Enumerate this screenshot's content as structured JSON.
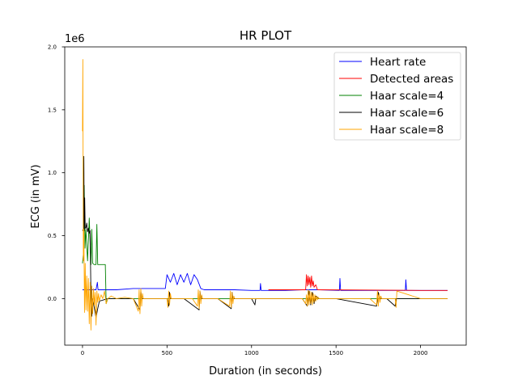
{
  "chart_data": {
    "type": "line",
    "title": "HR PLOT",
    "xlabel": "Duration (in seconds)",
    "ylabel": "ECG (in mV)",
    "y_offset_label": "1e6",
    "xlim": [
      -105,
      2270
    ],
    "ylim": [
      -370000,
      2000000
    ],
    "x_ticks": [
      0,
      500,
      1000,
      1500,
      2000
    ],
    "x_tick_labels": [
      "0",
      "500",
      "1000",
      "1500",
      "2000"
    ],
    "y_ticks": [
      0,
      500000,
      1000000,
      1500000,
      2000000
    ],
    "y_tick_labels": [
      "0.0",
      "0.5",
      "1.0",
      "1.5",
      "2.0"
    ],
    "grid": false,
    "legend_position": "top-right",
    "series": [
      {
        "name": "Heart rate",
        "color": "#0000ff",
        "x": [
          0,
          40,
          80,
          88,
          92,
          100,
          200,
          300,
          400,
          490,
          500,
          520,
          540,
          560,
          580,
          600,
          620,
          640,
          660,
          680,
          700,
          720,
          800,
          900,
          1000,
          1050,
          1053,
          1057,
          1100,
          1200,
          1300,
          1340,
          1400,
          1520,
          1523,
          1527,
          1600,
          1700,
          1800,
          1900,
          1910,
          1913,
          1917,
          2000,
          2160
        ],
        "y": [
          70000,
          70000,
          70000,
          130000,
          70000,
          70000,
          70000,
          80000,
          80000,
          80000,
          190000,
          130000,
          200000,
          110000,
          190000,
          130000,
          200000,
          110000,
          190000,
          150000,
          80000,
          70000,
          70000,
          70000,
          65000,
          65000,
          120000,
          65000,
          65000,
          65000,
          70000,
          70000,
          70000,
          65000,
          160000,
          65000,
          65000,
          65000,
          65000,
          65000,
          65000,
          150000,
          65000,
          65000,
          65000
        ]
      },
      {
        "name": "Detected areas",
        "color": "#ff0000",
        "x": [
          1100,
          1200,
          1300,
          1320,
          1325,
          1330,
          1335,
          1340,
          1345,
          1350,
          1355,
          1360,
          1365,
          1370,
          1380,
          1390,
          1400,
          2000,
          2100,
          2160
        ],
        "y": [
          70000,
          70000,
          70000,
          70000,
          190000,
          100000,
          180000,
          110000,
          170000,
          90000,
          180000,
          100000,
          140000,
          90000,
          110000,
          70000,
          70000,
          65000,
          65000,
          65000
        ]
      },
      {
        "name": "Haar scale=4",
        "color": "#008000",
        "x": [
          0,
          5,
          10,
          15,
          20,
          30,
          40,
          50,
          55,
          60,
          70,
          80,
          85,
          90,
          95,
          100,
          120,
          135,
          140,
          150,
          200,
          300,
          400,
          2160
        ],
        "y": [
          280000,
          350000,
          900000,
          400000,
          550000,
          300000,
          640000,
          270000,
          550000,
          280000,
          270000,
          270000,
          590000,
          270000,
          270000,
          270000,
          270000,
          270000,
          -40000,
          0,
          0,
          0,
          0,
          0
        ]
      },
      {
        "name": "Haar scale=6",
        "color": "#000000",
        "x": [
          0,
          5,
          8,
          10,
          13,
          16,
          20,
          25,
          30,
          35,
          40,
          45,
          50,
          55,
          60,
          80,
          90,
          100,
          150,
          200,
          300,
          340,
          345,
          350,
          400,
          500,
          510,
          515,
          520,
          600,
          690,
          695,
          700,
          800,
          880,
          885,
          890,
          1000,
          1020,
          1025,
          1100,
          1300,
          1330,
          1340,
          1350,
          1360,
          1370,
          1380,
          1400,
          1500,
          1740,
          1750,
          1760,
          1800,
          1850,
          1855,
          2000,
          2160
        ],
        "y": [
          540000,
          550000,
          1130000,
          540000,
          800000,
          560000,
          560000,
          600000,
          530000,
          560000,
          520000,
          540000,
          20000,
          -140000,
          0,
          -150000,
          -80000,
          -20000,
          0,
          0,
          0,
          -90000,
          60000,
          0,
          0,
          0,
          -60000,
          50000,
          0,
          0,
          -90000,
          60000,
          0,
          0,
          -80000,
          50000,
          0,
          0,
          -50000,
          0,
          0,
          0,
          -60000,
          60000,
          -50000,
          50000,
          -40000,
          20000,
          0,
          0,
          -60000,
          50000,
          0,
          0,
          -60000,
          0,
          0,
          0
        ]
      },
      {
        "name": "Haar scale=8",
        "color": "#ffa500",
        "x": [
          0,
          2,
          5,
          8,
          12,
          16,
          20,
          25,
          30,
          35,
          40,
          45,
          50,
          55,
          60,
          65,
          70,
          75,
          80,
          85,
          90,
          95,
          100,
          110,
          120,
          130,
          140,
          150,
          170,
          200,
          250,
          300,
          330,
          335,
          340,
          345,
          350,
          355,
          360,
          400,
          450,
          500,
          505,
          510,
          515,
          520,
          525,
          600,
          650,
          680,
          685,
          690,
          695,
          700,
          705,
          710,
          800,
          870,
          875,
          880,
          885,
          890,
          895,
          900,
          1000,
          1100,
          1200,
          1300,
          1320,
          1325,
          1330,
          1335,
          1340,
          1345,
          1350,
          1355,
          1360,
          1365,
          1370,
          1375,
          1380,
          1385,
          1390,
          1395,
          1400,
          1405,
          1410,
          1500,
          1700,
          1740,
          1745,
          1750,
          1755,
          1760,
          1765,
          1770,
          1850,
          1855,
          1860,
          2000,
          2160
        ],
        "y": [
          1330000,
          1900000,
          300000,
          550000,
          -110000,
          280000,
          -90000,
          180000,
          -100000,
          160000,
          -200000,
          130000,
          -250000,
          100000,
          -120000,
          80000,
          -50000,
          50000,
          -210000,
          60000,
          -30000,
          40000,
          -20000,
          30000,
          0,
          60000,
          -40000,
          0,
          20000,
          0,
          10000,
          0,
          -100000,
          70000,
          -120000,
          80000,
          -60000,
          40000,
          0,
          0,
          0,
          0,
          -70000,
          60000,
          -50000,
          40000,
          0,
          0,
          0,
          -60000,
          70000,
          -80000,
          60000,
          -40000,
          30000,
          0,
          0,
          -60000,
          60000,
          -70000,
          50000,
          -40000,
          20000,
          0,
          0,
          0,
          0,
          0,
          -40000,
          30000,
          -60000,
          70000,
          -50000,
          60000,
          -40000,
          50000,
          -50000,
          40000,
          -30000,
          30000,
          -20000,
          20000,
          -10000,
          10000,
          0,
          0,
          0,
          0,
          0,
          -50000,
          60000,
          -60000,
          40000,
          -30000,
          20000,
          0,
          0,
          -70000,
          60000,
          0,
          0
        ]
      }
    ]
  }
}
